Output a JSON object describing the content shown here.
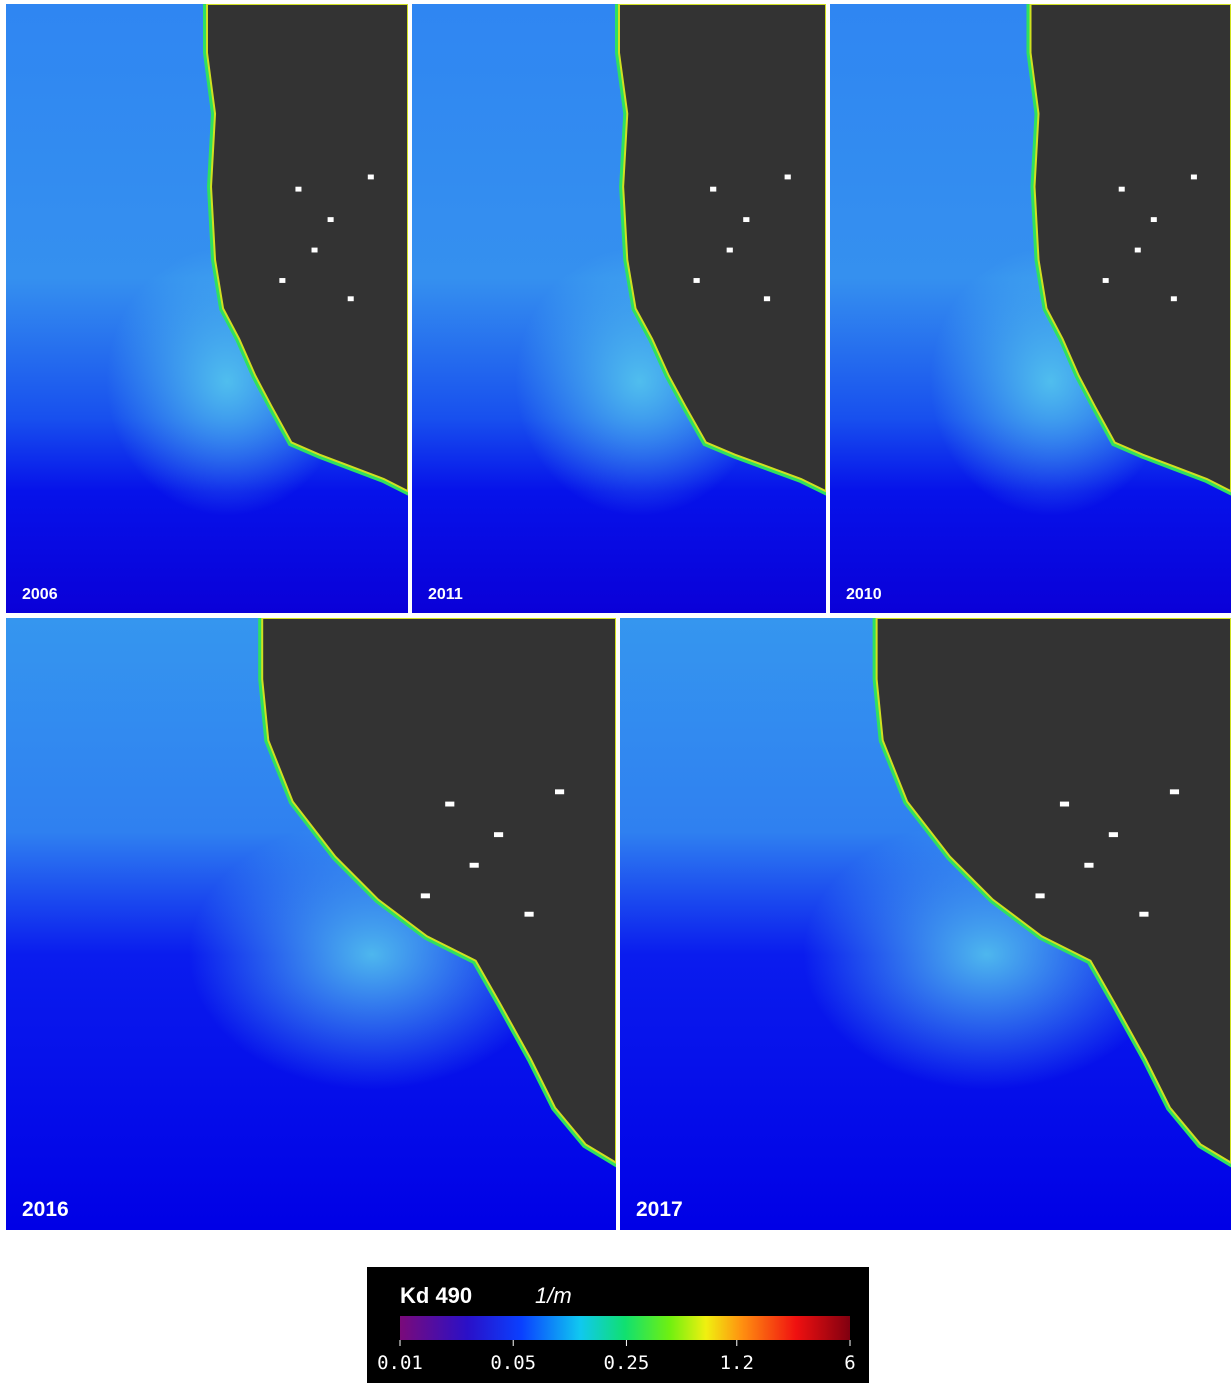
{
  "panels": [
    {
      "label": "2006"
    },
    {
      "label": "2011"
    },
    {
      "label": "2010"
    },
    {
      "label": "2016"
    },
    {
      "label": "2017"
    }
  ],
  "colorbar": {
    "title": "Kd 490",
    "unit": "1/m",
    "lim": [
      0.01,
      6
    ],
    "log_scale": true,
    "ticks": [
      0.01,
      0.05,
      0.25,
      1.2,
      6
    ]
  }
}
